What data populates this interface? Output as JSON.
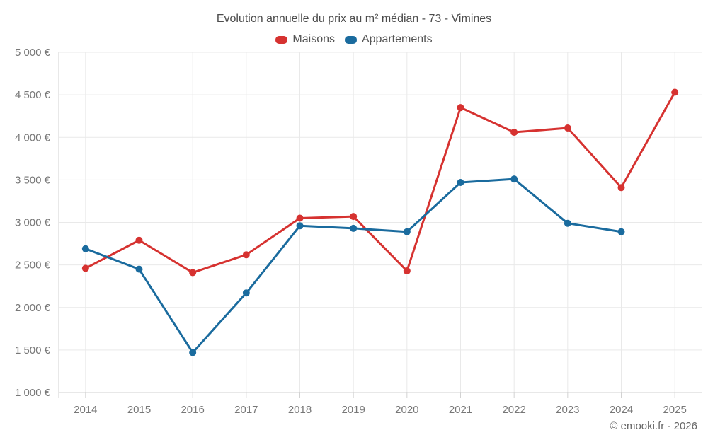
{
  "title": "Evolution annuelle du prix au m² médian - 73 - Vimines",
  "footer": "© emooki.fr - 2026",
  "colors": {
    "maisons": "#d63230",
    "appartements": "#1a6b9e",
    "grid": "#e9e9e9",
    "axis": "#d2d2d2",
    "title_text": "#4c4c4c",
    "legend_text": "#545454",
    "tick_text": "#777777",
    "footer_text": "#666666"
  },
  "chart_data": {
    "type": "line",
    "title": "Evolution annuelle du prix au m² médian - 73 - Vimines",
    "categories": [
      "2014",
      "2015",
      "2016",
      "2017",
      "2018",
      "2019",
      "2020",
      "2021",
      "2022",
      "2023",
      "2024",
      "2025"
    ],
    "series": [
      {
        "name": "Maisons",
        "color": "#d63230",
        "values": [
          2460,
          2790,
          2410,
          2620,
          3050,
          3070,
          2430,
          4350,
          4060,
          4110,
          3410,
          4530
        ]
      },
      {
        "name": "Appartements",
        "color": "#1a6b9e",
        "values": [
          2690,
          2450,
          1470,
          2170,
          2960,
          2930,
          2890,
          3470,
          3510,
          2990,
          2890,
          null
        ]
      }
    ],
    "xlabel": "",
    "ylabel": "",
    "ylim": [
      1000,
      5000
    ],
    "ytick_step": 500,
    "ytick_format": "space-thousands-euro",
    "grid": true,
    "legend_position": "top",
    "marker": "circle"
  }
}
